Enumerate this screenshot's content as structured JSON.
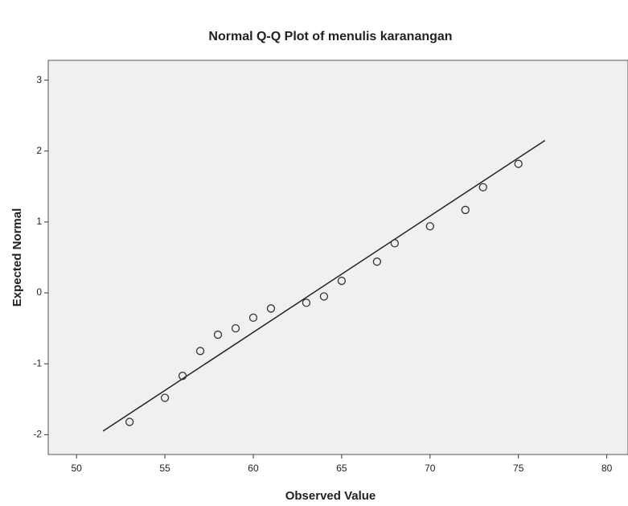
{
  "chart_data": {
    "type": "scatter",
    "title": "Normal Q-Q Plot of menulis karanangan",
    "x_label": "Observed Value",
    "y_label": "Expected Normal",
    "x": [
      53,
      55,
      56,
      57,
      58,
      59,
      60,
      61,
      63,
      64,
      65,
      67,
      68,
      70,
      72,
      73,
      75
    ],
    "values": [
      -1.82,
      -1.48,
      -1.17,
      -0.82,
      -0.59,
      -0.5,
      -0.35,
      -0.22,
      -0.14,
      -0.05,
      0.17,
      0.44,
      0.7,
      0.94,
      1.17,
      1.49,
      1.82
    ],
    "reference_line": {
      "x": [
        51.5,
        76.5
      ],
      "y": [
        -1.95,
        2.15
      ]
    },
    "color": "#333333",
    "xlim": [
      48.4,
      81.2
    ],
    "ylim": [
      -2.28,
      3.28
    ],
    "xticks": [
      50,
      55,
      60,
      65,
      70,
      75,
      80
    ],
    "yticks": [
      -2,
      -1,
      0,
      1,
      2,
      3
    ]
  }
}
